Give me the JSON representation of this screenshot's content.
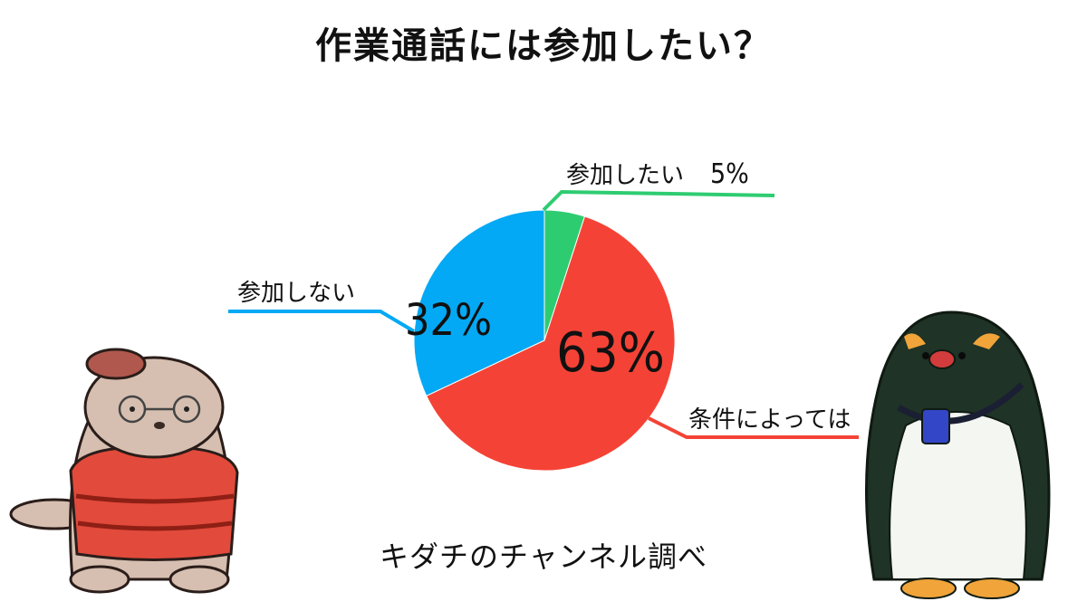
{
  "title": "作業通話には参加したい？",
  "credit": "キダチのチャンネル調べ",
  "chart_data": {
    "type": "pie",
    "slices": [
      {
        "label": "参加したい",
        "value": 5,
        "value_label": "5%",
        "color": "#2ecc71"
      },
      {
        "label": "条件によっては",
        "value": 63,
        "value_label": "63%",
        "color": "#f44336"
      },
      {
        "label": "参加しない",
        "value": 32,
        "value_label": "32%",
        "color": "#03a9f4"
      }
    ]
  }
}
